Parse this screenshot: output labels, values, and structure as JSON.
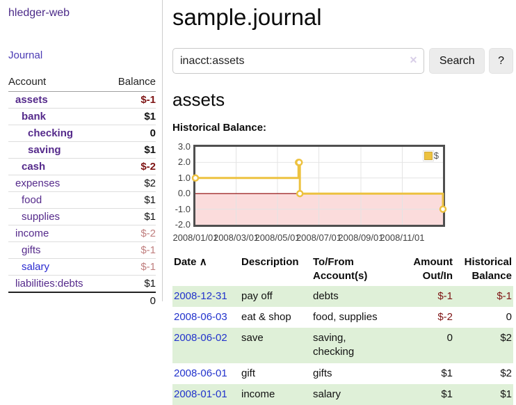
{
  "app": {
    "brand": "hledger-web"
  },
  "sidebar": {
    "journal_link": "Journal",
    "accounts": {
      "header": {
        "account": "Account",
        "balance": "Balance"
      },
      "rows": [
        {
          "name": "assets",
          "balance": "$-1"
        },
        {
          "name": "bank",
          "balance": "$1"
        },
        {
          "name": "checking",
          "balance": "0"
        },
        {
          "name": "saving",
          "balance": "$1"
        },
        {
          "name": "cash",
          "balance": "$-2"
        },
        {
          "name": "expenses",
          "balance": "$2"
        },
        {
          "name": "food",
          "balance": "$1"
        },
        {
          "name": "supplies",
          "balance": "$1"
        },
        {
          "name": "income",
          "balance": "$-2"
        },
        {
          "name": "gifts",
          "balance": "$-1"
        },
        {
          "name": "salary",
          "balance": "$-1"
        },
        {
          "name": "liabilities:debts",
          "balance": "$1"
        }
      ],
      "total": "0"
    }
  },
  "main": {
    "title": "sample.journal",
    "search": {
      "value": "inacct:assets",
      "clear": "✕",
      "button": "Search",
      "help": "?"
    },
    "heading": "assets",
    "chart_title": "Historical Balance:",
    "register": {
      "headers": {
        "date": "Date",
        "sort": "∧",
        "description": "Description",
        "accounts_l1": "To/From",
        "accounts_l2": "Account(s)",
        "amount_l1": "Amount",
        "amount_l2": "Out/In",
        "hist_l1": "Historical",
        "hist_l2": "Balance"
      },
      "rows": [
        {
          "date": "2008-12-31",
          "description": "pay off",
          "accounts1": "debts",
          "accounts2": "",
          "amount": "$-1",
          "balance": "$-1"
        },
        {
          "date": "2008-06-03",
          "description": "eat & shop",
          "accounts1": "food, supplies",
          "accounts2": "",
          "amount": "$-2",
          "balance": "0"
        },
        {
          "date": "2008-06-02",
          "description": "save",
          "accounts1": "saving,",
          "accounts2": "checking",
          "amount": "0",
          "balance": "$2"
        },
        {
          "date": "2008-06-01",
          "description": "gift",
          "accounts1": "gifts",
          "accounts2": "",
          "amount": "$1",
          "balance": "$2"
        },
        {
          "date": "2008-01-01",
          "description": "income",
          "accounts1": "salary",
          "accounts2": "",
          "amount": "$1",
          "balance": "$1"
        }
      ]
    }
  },
  "colors": {
    "link_purple": "#552a8b",
    "link_blue": "#2a2ad0",
    "date_blue": "#2233cc",
    "negative_strong": "#7e1414",
    "negative_soft": "#c07f7f",
    "row_green": "#dff0d8",
    "series_yellow": "#edc240"
  },
  "chart_data": {
    "type": "line",
    "step": true,
    "title": "Historical Balance:",
    "series": [
      {
        "name": "$",
        "color": "#edc240",
        "points": [
          [
            "2008-01-01",
            1
          ],
          [
            "2008-06-01",
            2
          ],
          [
            "2008-06-02",
            2
          ],
          [
            "2008-06-03",
            0
          ],
          [
            "2008-12-31",
            -1
          ]
        ]
      }
    ],
    "xlim": [
      "2008-01-01",
      "2008-12-31"
    ],
    "ylim": [
      -2,
      3
    ],
    "yticks": [
      "3.0",
      "2.0",
      "1.0",
      "0.0",
      "-1.0",
      "-2.0"
    ],
    "xticks": [
      "2008/01/01",
      "2008/03/01",
      "2008/05/01",
      "2008/07/01",
      "2008/09/01",
      "2008/11/01"
    ],
    "legend": {
      "label": "$",
      "position": "top-right"
    },
    "grid": true,
    "negative_region_color": "#fbdcdc",
    "zero_line_color": "#8b0000",
    "border_color": "#4f4f4f"
  }
}
